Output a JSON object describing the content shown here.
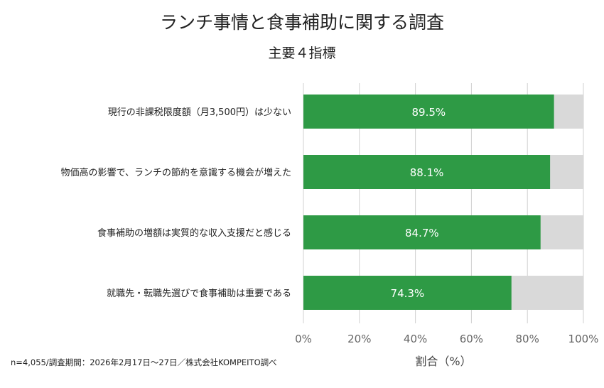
{
  "title": "ランチ事情と食事補助に関する調査",
  "subtitle": "主要４指標",
  "footnote": "n=4,055/調査期間：2026年2月17日〜27日／株式会社KOMPEITO調べ",
  "colors": {
    "bar": "#2e9a45",
    "remainder": "#d9d9d9",
    "grid": "#d0d0d0",
    "label_on_bar": "#ffffff"
  },
  "chart_data": {
    "type": "bar",
    "orientation": "horizontal",
    "stacked_to_100": true,
    "categories": [
      "現行の非課税限度額（月3,500円）は少ない",
      "物価高の影響で、ランチの節約を意識する機会が増えた",
      "食事補助の増額は実質的な収入支援だと感じる",
      "就職先・転職先選びで食事補助は重要である"
    ],
    "values": [
      89.5,
      88.1,
      84.7,
      74.3
    ],
    "data_labels": [
      "89.5%",
      "88.1%",
      "84.7%",
      "74.3%"
    ],
    "xlabel": "割合（%）",
    "ylabel": "",
    "xlim": [
      0,
      100
    ],
    "xticks": [
      0,
      20,
      40,
      60,
      80,
      100
    ],
    "xtick_labels": [
      "0%",
      "20%",
      "40%",
      "60%",
      "80%",
      "100%"
    ],
    "grid": true,
    "legend": "none"
  }
}
